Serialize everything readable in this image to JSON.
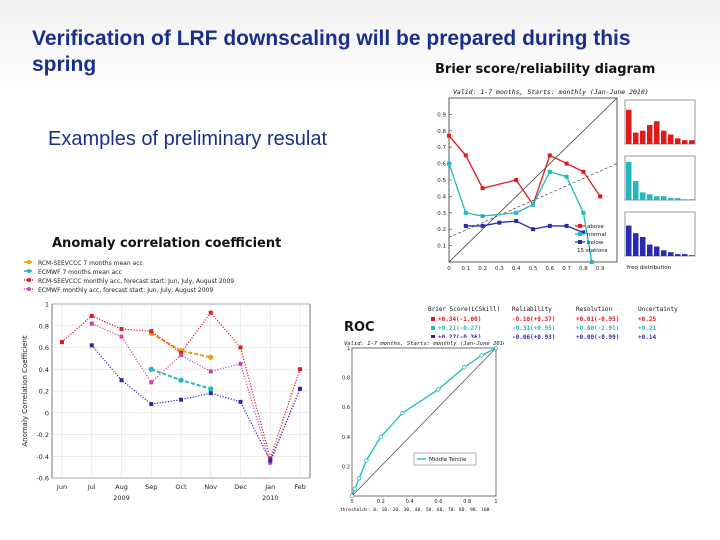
{
  "slide": {
    "title": "Verification of LRF downscaling will be prepared during this spring",
    "subtitle": "Examples of preliminary resulat"
  },
  "colors": {
    "title": "#1a2f8c",
    "red": "#e0191b",
    "blue": "#2a2ab0",
    "cyan": "#22b8c0",
    "orange": "#f39a1b",
    "green": "#2ec4a8"
  },
  "anomaly": {
    "caption": "Anomaly correlation coefficient",
    "ylabel": "Anomaly Correlation Coefficient",
    "legend": [
      "RCM-SEEVCCC 7 months mean acc",
      "ECMWF 7 months mean acc",
      "RCM-SEEVCCC monthly acc, forecast start: Jun, July, August 2009",
      "ECMWF monthly acc, forecast start: Jun, July, August 2009"
    ],
    "year_labels": [
      "2009",
      "2010"
    ]
  },
  "brier": {
    "caption": "Brier score/reliability diagram",
    "plot_title": "Valid: 1-7 months, Starts: monthly (Jan-June 2010)",
    "legend": [
      "above",
      "normal",
      "below",
      "15 stations"
    ],
    "freq_label": "freq distribution",
    "headers": [
      "Brier Score(LCSkill)",
      "Reliability",
      "Resolution",
      "Uncertainty"
    ],
    "rows": [
      [
        "+0.34(-1.00)",
        "-0.10(+0.37)",
        "+0.01(-0.95)",
        "+0.25"
      ],
      [
        "+0.21(-0.27)",
        "-0.31(+0.95)",
        "+0.00(-2.91)",
        "+0.21"
      ],
      [
        "+0.27(-0.36)",
        "-0.06(+0.93)",
        "+0.00(-0.99)",
        "+0.14"
      ]
    ]
  },
  "roc": {
    "caption": "ROC",
    "plot_title": "Valid: 1-7 months, Starts: monthly (Jan-June 2010)",
    "legend": "Middle Tercile",
    "thresholds": "thresholds: 0. 10. 20. 30. 40. 50. 60. 70. 80. 90. 100"
  },
  "chart_data": [
    {
      "type": "line",
      "title": "Anomaly correlation coefficient",
      "ylabel": "Anomaly Correlation Coefficient",
      "categories": [
        "Jun",
        "Jul",
        "Aug",
        "Sep",
        "Oct",
        "Nov",
        "Dec",
        "Jan",
        "Feb"
      ],
      "ylim": [
        -0.6,
        1.0
      ],
      "yticks": [
        "1",
        "0.8",
        "0.6",
        "0.4",
        "0.2",
        "0",
        "-0.2",
        "-0.4",
        "-0.6"
      ],
      "grid": true,
      "legend_position": "top-left",
      "series": [
        {
          "name": "RCM-SEEVCCC 7 months mean acc",
          "color": "#f39a1b",
          "style": "dashed",
          "points": [
            [
              3,
              0.73
            ],
            [
              4,
              0.57
            ],
            [
              5,
              0.51
            ]
          ]
        },
        {
          "name": "ECMWF 7 months mean acc",
          "color": "#22b8c0",
          "style": "dashed",
          "points": [
            [
              3,
              0.4
            ],
            [
              4,
              0.3
            ],
            [
              5,
              0.22
            ]
          ]
        },
        {
          "name": "RCM-SEEVCCC monthly acc, forecast start: Jun, July, August 2009",
          "color": "#e0191b",
          "style": "dotted",
          "points": [
            [
              0,
              0.65
            ],
            [
              1,
              0.89
            ],
            [
              2,
              0.77
            ],
            [
              3,
              0.75
            ],
            [
              4,
              0.55
            ],
            [
              5,
              0.92
            ],
            [
              6,
              0.6
            ],
            [
              7,
              -0.42
            ],
            [
              8,
              0.4
            ]
          ]
        },
        {
          "name": "ECMWF monthly acc, forecast start: Jun, July, August 2009",
          "color": "#cc44aa",
          "style": "dotted",
          "points": [
            [
              1,
              0.82
            ],
            [
              2,
              0.7
            ],
            [
              3,
              0.28
            ],
            [
              4,
              0.53
            ],
            [
              5,
              0.38
            ],
            [
              6,
              0.45
            ],
            [
              7,
              -0.46
            ],
            [
              8,
              0.22
            ]
          ]
        },
        {
          "name": "",
          "color": "#2a2ab0",
          "style": "dotted",
          "points": [
            [
              1,
              0.62
            ],
            [
              2,
              0.3
            ],
            [
              3,
              0.08
            ],
            [
              4,
              0.12
            ],
            [
              5,
              0.18
            ],
            [
              6,
              0.1
            ],
            [
              7,
              -0.44
            ],
            [
              8,
              0.22
            ]
          ]
        }
      ]
    },
    {
      "type": "line",
      "title": "Valid: 1-7 months, Starts: monthly (Jan-June 2010)",
      "xlim": [
        0,
        1
      ],
      "ylim": [
        0,
        1
      ],
      "xticks": [
        "0",
        "0.1",
        "0.2",
        "0.3",
        "0.4",
        "0.5",
        "0.6",
        "0.7",
        "0.8",
        "0.9"
      ],
      "yticks": [
        "0.1",
        "0.2",
        "0.3",
        "0.4",
        "0.5",
        "0.6",
        "0.7",
        "0.8",
        "0.9"
      ],
      "series": [
        {
          "name": "above",
          "color": "#e0191b",
          "x": [
            0.0,
            0.1,
            0.2,
            0.4,
            0.5,
            0.6,
            0.7,
            0.8,
            0.9
          ],
          "y": [
            0.77,
            0.65,
            0.45,
            0.5,
            0.35,
            0.65,
            0.6,
            0.55,
            0.4
          ]
        },
        {
          "name": "normal",
          "color": "#22b8c0",
          "x": [
            0.0,
            0.1,
            0.2,
            0.4,
            0.5,
            0.6,
            0.7,
            0.8,
            0.85
          ],
          "y": [
            0.6,
            0.3,
            0.28,
            0.3,
            0.35,
            0.55,
            0.52,
            0.3,
            0.0
          ]
        },
        {
          "name": "below",
          "color": "#2a2ab0",
          "x": [
            0.1,
            0.2,
            0.3,
            0.4,
            0.5,
            0.6,
            0.7,
            0.8
          ],
          "y": [
            0.22,
            0.22,
            0.24,
            0.25,
            0.2,
            0.22,
            0.22,
            0.18
          ]
        }
      ]
    },
    {
      "type": "line",
      "title": "Valid: 1-7 months, Starts: monthly (Jan-June 2010)",
      "xlim": [
        0,
        1
      ],
      "ylim": [
        0,
        1
      ],
      "xticks": [
        "0",
        "0.2",
        "0.4",
        "0.6",
        "0.8",
        "1"
      ],
      "yticks": [
        "0.2",
        "0.4",
        "0.6",
        "0.8",
        "1"
      ],
      "series": [
        {
          "name": "Middle Tercile",
          "color": "#22b8c0",
          "x": [
            0.0,
            0.02,
            0.05,
            0.1,
            0.2,
            0.35,
            0.6,
            0.78,
            0.9,
            1.0
          ],
          "y": [
            0.0,
            0.05,
            0.12,
            0.24,
            0.4,
            0.56,
            0.72,
            0.87,
            0.95,
            1.0
          ]
        }
      ]
    }
  ]
}
